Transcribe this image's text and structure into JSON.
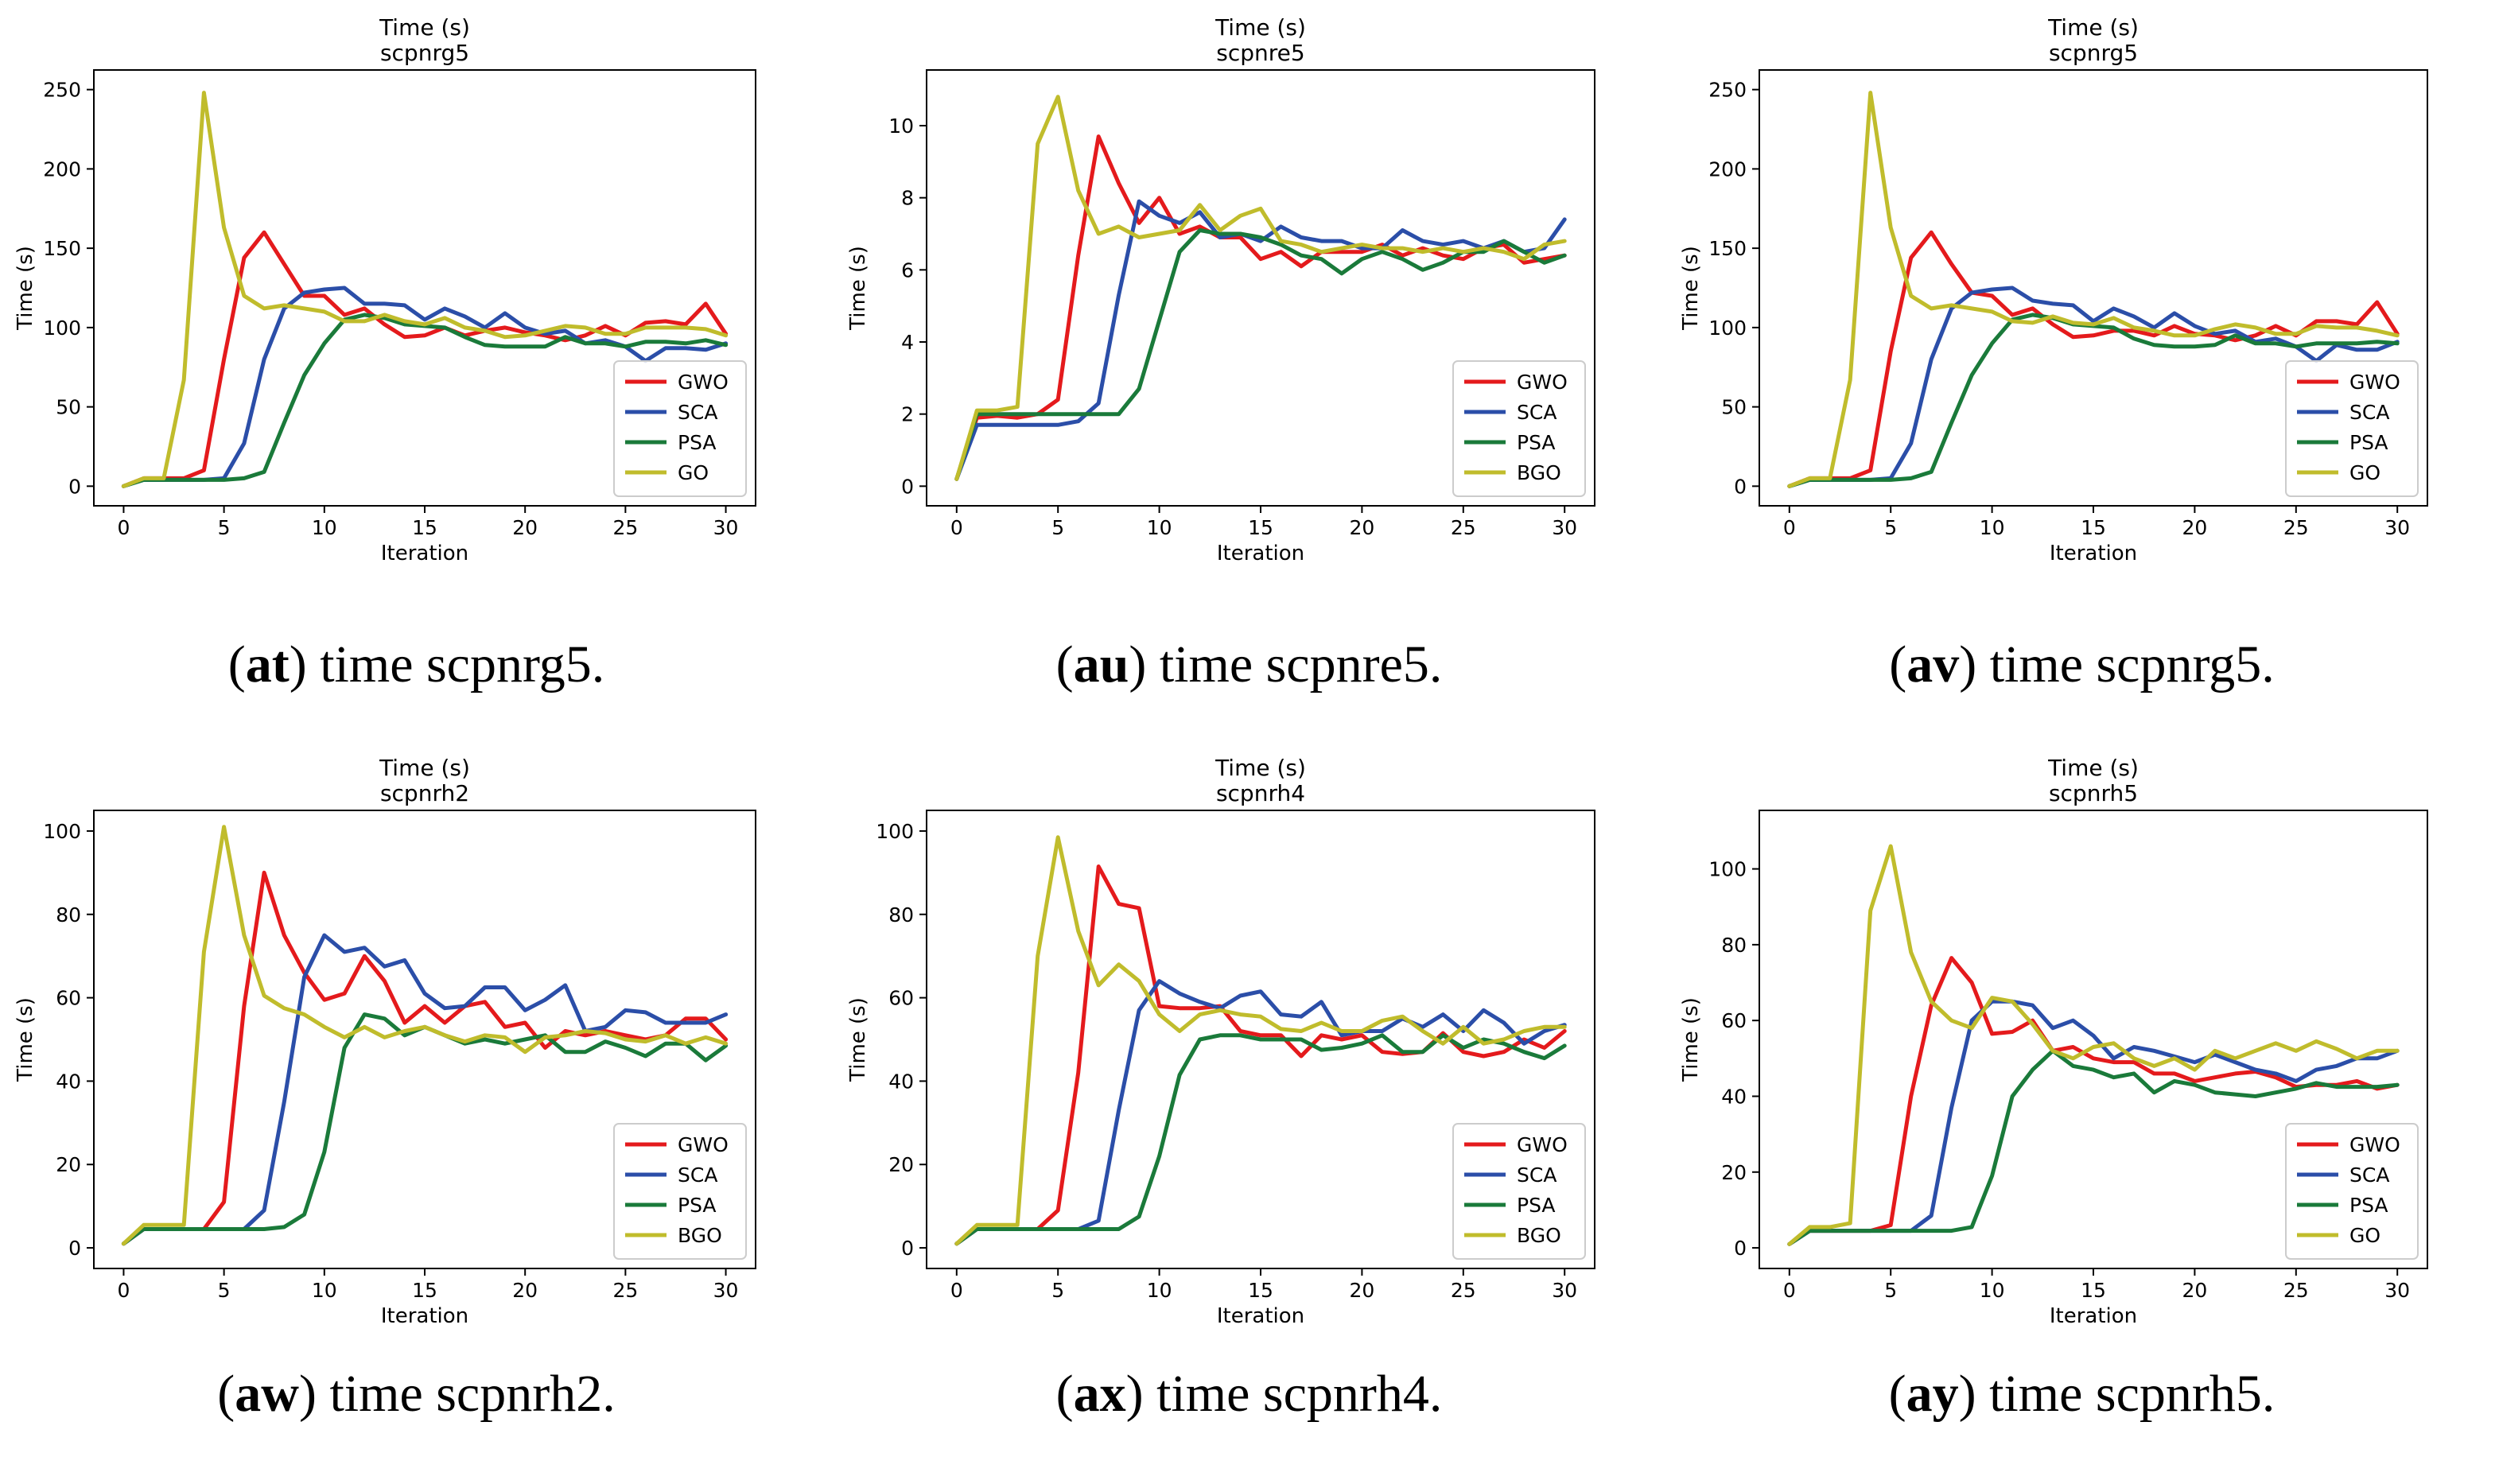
{
  "chart_data": [
    {
      "type": "line",
      "title": "Time (s)",
      "subtitle": "scpnrg5",
      "xlabel": "Iteration",
      "ylabel": "Time (s)",
      "xlim": [
        0,
        30
      ],
      "ylim": [
        0,
        250
      ],
      "xticks": [
        0,
        5,
        10,
        15,
        20,
        25,
        30
      ],
      "yticks": [
        0,
        50,
        100,
        150,
        200,
        250
      ],
      "legend_position": "lower-right",
      "caption_label": "at",
      "caption_text": "time scpnrg5.",
      "series": [
        {
          "name": "GWO",
          "color": "#e41a1c",
          "values": [
            0,
            5,
            5,
            5,
            10,
            80,
            144,
            160,
            140,
            120,
            120,
            108,
            112,
            102,
            94,
            95,
            100,
            95,
            98,
            100,
            97,
            95,
            92,
            95,
            101,
            95,
            103,
            104,
            102,
            115,
            96
          ]
        },
        {
          "name": "SCA",
          "color": "#2b4ea8",
          "values": [
            0,
            4,
            4,
            4,
            4,
            5,
            27,
            80,
            112,
            122,
            124,
            125,
            115,
            115,
            114,
            105,
            112,
            107,
            100,
            109,
            100,
            96,
            98,
            90,
            92,
            88,
            79,
            87,
            87,
            86,
            90
          ]
        },
        {
          "name": "PSA",
          "color": "#1a7a3a",
          "values": [
            0,
            4,
            4,
            4,
            4,
            4,
            5,
            9,
            40,
            70,
            90,
            105,
            108,
            106,
            102,
            101,
            100,
            94,
            89,
            88,
            88,
            88,
            94,
            90,
            90,
            88,
            91,
            91,
            90,
            92,
            89
          ]
        },
        {
          "name": "GO",
          "color": "#c0bc2c",
          "values": [
            0,
            5,
            5,
            67,
            248,
            163,
            120,
            112,
            114,
            112,
            110,
            104,
            104,
            108,
            104,
            102,
            106,
            100,
            98,
            94,
            95,
            98,
            101,
            100,
            96,
            96,
            100,
            100,
            100,
            99,
            95
          ]
        }
      ]
    },
    {
      "type": "line",
      "title": "Time (s)",
      "subtitle": "scpnre5",
      "xlabel": "Iteration",
      "ylabel": "Time (s)",
      "xlim": [
        0,
        30
      ],
      "ylim": [
        0,
        11
      ],
      "xticks": [
        0,
        5,
        10,
        15,
        20,
        25,
        30
      ],
      "yticks": [
        0,
        2,
        4,
        6,
        8,
        10
      ],
      "legend_position": "lower-right",
      "caption_label": "au",
      "caption_text": "time scpnre5.",
      "series": [
        {
          "name": "GWO",
          "color": "#e41a1c",
          "values": [
            0.2,
            1.9,
            1.95,
            1.9,
            2.0,
            2.4,
            6.4,
            9.7,
            8.4,
            7.3,
            8.0,
            7.0,
            7.2,
            6.9,
            6.9,
            6.3,
            6.5,
            6.1,
            6.5,
            6.5,
            6.5,
            6.7,
            6.4,
            6.6,
            6.4,
            6.3,
            6.6,
            6.7,
            6.2,
            6.3,
            6.4
          ]
        },
        {
          "name": "SCA",
          "color": "#2b4ea8",
          "values": [
            0.2,
            1.7,
            1.7,
            1.7,
            1.7,
            1.7,
            1.8,
            2.3,
            5.3,
            7.9,
            7.5,
            7.3,
            7.6,
            6.9,
            7.0,
            6.8,
            7.2,
            6.9,
            6.8,
            6.8,
            6.6,
            6.6,
            7.1,
            6.8,
            6.7,
            6.8,
            6.6,
            6.8,
            6.5,
            6.6,
            7.4
          ]
        },
        {
          "name": "PSA",
          "color": "#1a7a3a",
          "values": [
            0.2,
            2.0,
            2.0,
            2.0,
            2.0,
            2.0,
            2.0,
            2.0,
            2.0,
            2.7,
            4.6,
            6.5,
            7.1,
            7.0,
            7.0,
            6.9,
            6.7,
            6.4,
            6.3,
            5.9,
            6.3,
            6.5,
            6.3,
            6.0,
            6.2,
            6.5,
            6.5,
            6.8,
            6.5,
            6.2,
            6.4
          ]
        },
        {
          "name": "BGO",
          "color": "#c0bc2c",
          "values": [
            0.2,
            2.1,
            2.1,
            2.2,
            9.5,
            10.8,
            8.2,
            7.0,
            7.2,
            6.9,
            7.0,
            7.1,
            7.8,
            7.1,
            7.5,
            7.7,
            6.8,
            6.7,
            6.5,
            6.6,
            6.7,
            6.6,
            6.6,
            6.5,
            6.6,
            6.5,
            6.6,
            6.5,
            6.3,
            6.7,
            6.8
          ]
        }
      ]
    },
    {
      "type": "line",
      "title": "Time (s)",
      "subtitle": "scpnrg5",
      "xlabel": "Iteration",
      "ylabel": "Time (s)",
      "xlim": [
        0,
        30
      ],
      "ylim": [
        0,
        250
      ],
      "xticks": [
        0,
        5,
        10,
        15,
        20,
        25,
        30
      ],
      "yticks": [
        0,
        50,
        100,
        150,
        200,
        250
      ],
      "legend_position": "lower-right",
      "caption_label": "av",
      "caption_text": "time scpnrg5.",
      "series": [
        {
          "name": "GWO",
          "color": "#e41a1c",
          "values": [
            0,
            5,
            5,
            5,
            10,
            85,
            144,
            160,
            140,
            122,
            120,
            108,
            112,
            102,
            94,
            95,
            98,
            98,
            95,
            101,
            96,
            95,
            92,
            95,
            101,
            95,
            104,
            104,
            102,
            116,
            96
          ]
        },
        {
          "name": "SCA",
          "color": "#2b4ea8",
          "values": [
            0,
            4,
            4,
            4,
            4,
            5,
            27,
            80,
            112,
            122,
            124,
            125,
            117,
            115,
            114,
            104,
            112,
            107,
            100,
            109,
            101,
            96,
            98,
            91,
            93,
            88,
            79,
            89,
            86,
            86,
            91
          ]
        },
        {
          "name": "PSA",
          "color": "#1a7a3a",
          "values": [
            0,
            4,
            4,
            4,
            4,
            4,
            5,
            9,
            40,
            70,
            90,
            105,
            108,
            106,
            102,
            101,
            100,
            93,
            89,
            88,
            88,
            89,
            95,
            90,
            90,
            88,
            90,
            90,
            90,
            91,
            90
          ]
        },
        {
          "name": "GO",
          "color": "#c0bc2c",
          "values": [
            0,
            5,
            5,
            67,
            248,
            163,
            120,
            112,
            114,
            112,
            110,
            104,
            103,
            107,
            103,
            102,
            106,
            100,
            98,
            95,
            95,
            99,
            102,
            100,
            96,
            96,
            101,
            100,
            100,
            98,
            95
          ]
        }
      ]
    },
    {
      "type": "line",
      "title": "Time (s)",
      "subtitle": "scpnrh2",
      "xlabel": "Iteration",
      "ylabel": "Time (s)",
      "xlim": [
        0,
        30
      ],
      "ylim": [
        0,
        100
      ],
      "xticks": [
        0,
        5,
        10,
        15,
        20,
        25,
        30
      ],
      "yticks": [
        0,
        20,
        40,
        60,
        80,
        100
      ],
      "legend_position": "lower-right",
      "caption_label": "aw",
      "caption_text": "time scpnrh2.",
      "series": [
        {
          "name": "GWO",
          "color": "#e41a1c",
          "values": [
            1,
            4.5,
            4.5,
            4.5,
            4.5,
            11,
            58,
            90,
            75,
            66,
            59.5,
            61,
            70,
            64,
            54,
            58,
            54,
            58,
            59,
            53,
            54,
            48,
            52,
            51,
            52,
            51,
            50,
            51,
            55,
            55,
            50
          ]
        },
        {
          "name": "SCA",
          "color": "#2b4ea8",
          "values": [
            1,
            4.5,
            4.5,
            4.5,
            4.5,
            4.5,
            4.5,
            9,
            35,
            65,
            75,
            71,
            72,
            67.5,
            69,
            61,
            57.5,
            58,
            62.5,
            62.5,
            57,
            59.5,
            63,
            52,
            53,
            57,
            56.5,
            54,
            54,
            54,
            56
          ]
        },
        {
          "name": "PSA",
          "color": "#1a7a3a",
          "values": [
            1,
            4.5,
            4.5,
            4.5,
            4.5,
            4.5,
            4.5,
            4.5,
            5,
            8,
            23,
            48,
            56,
            55,
            51,
            53,
            51,
            49,
            50,
            49,
            50,
            51,
            47,
            47,
            49.5,
            48,
            46,
            49,
            49,
            45,
            48.5
          ]
        },
        {
          "name": "BGO",
          "color": "#c0bc2c",
          "values": [
            1,
            5.5,
            5.5,
            5.5,
            71,
            101,
            75,
            60.5,
            57.5,
            56,
            53,
            50.5,
            53,
            50.5,
            52,
            53,
            51,
            49.5,
            51,
            50.5,
            47,
            50.5,
            51,
            52,
            51.5,
            50,
            49.5,
            51,
            49,
            50.5,
            49
          ]
        }
      ]
    },
    {
      "type": "line",
      "title": "Time (s)",
      "subtitle": "scpnrh4",
      "xlabel": "Iteration",
      "ylabel": "Time (s)",
      "xlim": [
        0,
        30
      ],
      "ylim": [
        0,
        100
      ],
      "xticks": [
        0,
        5,
        10,
        15,
        20,
        25,
        30
      ],
      "yticks": [
        0,
        20,
        40,
        60,
        80,
        100
      ],
      "legend_position": "lower-right",
      "caption_label": "ax",
      "caption_text": "time scpnrh4.",
      "series": [
        {
          "name": "GWO",
          "color": "#e41a1c",
          "values": [
            1,
            4.5,
            4.5,
            4.5,
            4.5,
            9,
            42,
            91.5,
            82.5,
            81.5,
            58,
            57.5,
            57.5,
            58,
            52,
            51,
            51,
            46,
            51,
            50,
            51,
            47,
            46.5,
            47,
            51.5,
            47,
            46,
            47,
            50,
            48,
            52
          ]
        },
        {
          "name": "SCA",
          "color": "#2b4ea8",
          "values": [
            1,
            4.5,
            4.5,
            4.5,
            4.5,
            4.5,
            4.5,
            6.5,
            33,
            57,
            64,
            61,
            59,
            57.5,
            60.5,
            61.5,
            56,
            55.5,
            59,
            51,
            52,
            52,
            55,
            53,
            56,
            52,
            57,
            54,
            49,
            52,
            53.5
          ]
        },
        {
          "name": "PSA",
          "color": "#1a7a3a",
          "values": [
            1,
            4.5,
            4.5,
            4.5,
            4.5,
            4.5,
            4.5,
            4.5,
            4.5,
            7.5,
            22,
            41.5,
            50,
            51,
            51,
            50,
            50,
            50,
            47.5,
            48,
            49,
            51,
            47,
            47,
            51,
            48,
            50,
            49,
            47,
            45.5,
            48.5
          ]
        },
        {
          "name": "BGO",
          "color": "#c0bc2c",
          "values": [
            1,
            5.5,
            5.5,
            5.5,
            70,
            98.5,
            76,
            63,
            68,
            64,
            56,
            52,
            56,
            57,
            56,
            55.5,
            52.5,
            52,
            54,
            52,
            52,
            54.5,
            55.5,
            52,
            49,
            53,
            49,
            50,
            52,
            53,
            53
          ]
        }
      ]
    },
    {
      "type": "line",
      "title": "Time (s)",
      "subtitle": "scpnrh5",
      "xlabel": "Iteration",
      "ylabel": "Time (s)",
      "xlim": [
        0,
        30
      ],
      "ylim": [
        0,
        110
      ],
      "xticks": [
        0,
        5,
        10,
        15,
        20,
        25,
        30
      ],
      "yticks": [
        0,
        20,
        40,
        60,
        80,
        100
      ],
      "legend_position": "lower-right",
      "caption_label": "ay",
      "caption_text": "time scpnrh5.",
      "series": [
        {
          "name": "GWO",
          "color": "#e41a1c",
          "values": [
            1,
            4.5,
            4.5,
            4.5,
            4.5,
            6,
            40,
            64,
            76.5,
            70,
            56.5,
            57,
            60,
            52,
            53,
            50,
            49,
            49,
            46,
            46,
            44,
            45,
            46,
            46.5,
            45,
            42.5,
            43,
            43,
            44,
            42,
            43
          ]
        },
        {
          "name": "SCA",
          "color": "#2b4ea8",
          "values": [
            1,
            4.5,
            4.5,
            4.5,
            4.5,
            4.5,
            4.5,
            8.5,
            37,
            60,
            65,
            65,
            64,
            58,
            60,
            56,
            50,
            53,
            52,
            50.5,
            49,
            51,
            49,
            47,
            46,
            44,
            47,
            48,
            50,
            50,
            52
          ]
        },
        {
          "name": "PSA",
          "color": "#1a7a3a",
          "values": [
            1,
            4.5,
            4.5,
            4.5,
            4.5,
            4.5,
            4.5,
            4.5,
            4.5,
            5.5,
            19,
            40,
            47,
            52,
            48,
            47,
            45,
            46,
            41,
            44,
            43,
            41,
            40.5,
            40,
            41,
            42,
            43.5,
            42.5,
            42.5,
            42.5,
            43
          ]
        },
        {
          "name": "GO",
          "color": "#c0bc2c",
          "values": [
            1,
            5.5,
            5.5,
            6.5,
            89,
            106,
            78,
            65,
            60,
            58,
            66,
            65,
            59,
            52,
            50,
            53,
            54,
            50,
            48,
            50,
            47,
            52,
            50,
            52,
            54,
            52,
            54.5,
            52.5,
            50,
            52,
            52
          ]
        }
      ]
    }
  ]
}
